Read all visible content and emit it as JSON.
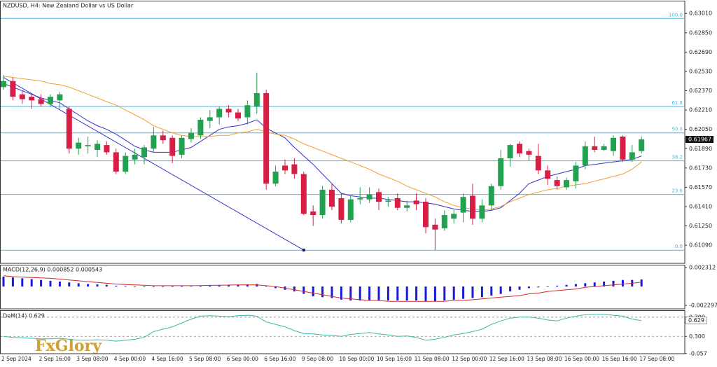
{
  "logo": "FxGlory",
  "chart_data": [
    {
      "type": "candlestick",
      "title": "NZDUSD, H4:  New Zealand Dollar vs US Dollar",
      "categories": [
        "2 Sep 2024",
        null,
        null,
        null,
        "2 Sep 16:00",
        null,
        null,
        null,
        "3 Sep 08:00",
        null,
        null,
        null,
        "4 Sep 00:00",
        null,
        null,
        null,
        "4 Sep 16:00",
        null,
        null,
        null,
        "5 Sep 08:00",
        null,
        null,
        null,
        "6 Sep 00:00",
        null,
        null,
        null,
        "6 Sep 16:00",
        null,
        null,
        null,
        "9 Sep 08:00",
        null,
        null,
        null,
        "10 Sep 00:00",
        null,
        null,
        null,
        "10 Sep 16:00",
        null,
        null,
        null,
        "11 Sep 08:00",
        null,
        null,
        null,
        "12 Sep 00:00",
        null,
        null,
        null,
        "12 Sep 16:00",
        null,
        null,
        null,
        "13 Sep 08:00",
        null,
        null,
        null,
        "16 Sep 00:00",
        null,
        null,
        null,
        "16 Sep 16:00",
        null,
        null,
        null,
        "17 Sep 08:00"
      ],
      "open": [
        0.624,
        0.6245,
        0.6234,
        0.6232,
        0.623,
        0.6226,
        0.6229,
        0.6222,
        0.6189,
        0.6191,
        0.6188,
        0.6192,
        0.6186,
        0.617,
        0.618,
        0.6182,
        0.6189,
        0.62,
        0.6198,
        0.6184,
        0.6197,
        0.62,
        0.6212,
        0.6215,
        0.6222,
        0.6219,
        0.6215,
        0.6224,
        0.6235,
        0.616,
        0.6175,
        0.6176,
        0.6168,
        0.6137,
        0.6134,
        0.6155,
        0.6148,
        0.613,
        0.6147,
        0.6147,
        0.6153,
        0.6145,
        0.6148,
        0.614,
        0.6146,
        0.6145,
        0.6126,
        0.6123,
        0.6131,
        0.6136,
        0.615,
        0.6131,
        0.6142,
        0.6158,
        0.6181,
        0.6193,
        0.6187,
        0.6183,
        0.6171,
        0.6163,
        0.6157,
        0.6162,
        0.6175,
        0.6191,
        0.6188,
        0.6187,
        0.6199,
        0.618,
        0.6187
      ],
      "high": [
        0.625,
        0.6248,
        0.6237,
        0.6235,
        0.6234,
        0.6234,
        0.6236,
        0.6224,
        0.6198,
        0.6199,
        0.6196,
        0.6195,
        0.6189,
        0.6186,
        0.6189,
        0.6192,
        0.6207,
        0.6204,
        0.62,
        0.62,
        0.6206,
        0.6215,
        0.6221,
        0.6224,
        0.6225,
        0.6222,
        0.6229,
        0.6252,
        0.6238,
        0.6175,
        0.618,
        0.6181,
        0.617,
        0.6142,
        0.6158,
        0.616,
        0.6152,
        0.615,
        0.6157,
        0.6157,
        0.6156,
        0.6149,
        0.6152,
        0.6146,
        0.6152,
        0.6148,
        0.6131,
        0.6138,
        0.6138,
        0.6152,
        0.616,
        0.6147,
        0.616,
        0.6188,
        0.6193,
        0.6195,
        0.6189,
        0.6193,
        0.6175,
        0.6166,
        0.6165,
        0.6178,
        0.6195,
        0.6199,
        0.6193,
        0.62,
        0.62,
        0.6192,
        0.6199
      ],
      "low": [
        0.6238,
        0.6229,
        0.6226,
        0.6222,
        0.6224,
        0.6224,
        0.6222,
        0.6185,
        0.6184,
        0.6185,
        0.6182,
        0.6184,
        0.6168,
        0.6168,
        0.6176,
        0.6176,
        0.6186,
        0.6193,
        0.6177,
        0.6181,
        0.6194,
        0.6197,
        0.6206,
        0.6209,
        0.6215,
        0.6212,
        0.6209,
        0.6218,
        0.6155,
        0.6158,
        0.6168,
        0.6164,
        0.6134,
        0.6125,
        0.6131,
        0.6138,
        0.6127,
        0.6128,
        0.6143,
        0.6144,
        0.6138,
        0.6141,
        0.6138,
        0.6137,
        0.6138,
        0.6119,
        0.6105,
        0.6121,
        0.6127,
        0.6128,
        0.6126,
        0.6128,
        0.6138,
        0.6155,
        0.6174,
        0.6182,
        0.6179,
        0.6168,
        0.6159,
        0.6155,
        0.6155,
        0.6156,
        0.6172,
        0.6186,
        0.6187,
        0.6183,
        0.6178,
        0.6178,
        0.6185
      ],
      "close": [
        0.6245,
        0.6232,
        0.623,
        0.6229,
        0.6226,
        0.6232,
        0.6234,
        0.6189,
        0.6194,
        0.6192,
        0.6193,
        0.6186,
        0.617,
        0.6183,
        0.6184,
        0.619,
        0.62,
        0.6196,
        0.6183,
        0.6198,
        0.6202,
        0.6213,
        0.6215,
        0.6222,
        0.6219,
        0.6214,
        0.6225,
        0.6235,
        0.616,
        0.617,
        0.6171,
        0.6168,
        0.6135,
        0.6134,
        0.6155,
        0.6141,
        0.613,
        0.6147,
        0.6148,
        0.6151,
        0.6145,
        0.6146,
        0.614,
        0.6142,
        0.6143,
        0.6124,
        0.6122,
        0.6134,
        0.6135,
        0.6149,
        0.6131,
        0.6142,
        0.6158,
        0.6181,
        0.6192,
        0.6185,
        0.6184,
        0.6171,
        0.6164,
        0.6158,
        0.6163,
        0.6175,
        0.6191,
        0.6188,
        0.6191,
        0.6198,
        0.618,
        0.6186,
        0.61967
      ],
      "up_color": "#22a150",
      "down_color": "#d81e44",
      "lines": [
        {
          "color": "#3333cc",
          "values": [
            0.6243,
            0.624,
            0.6237,
            0.6234,
            0.6231,
            0.6229,
            0.6227,
            0.6222,
            0.6217,
            0.6212,
            0.6208,
            0.6205,
            0.6201,
            0.6196,
            0.6191,
            0.6188,
            0.6186,
            0.6186,
            0.6186,
            0.6188,
            0.619,
            0.6195,
            0.62,
            0.6205,
            0.6207,
            0.6208,
            0.621,
            0.6213,
            0.6206,
            0.6202,
            0.6198,
            0.619,
            0.6183,
            0.6176,
            0.6168,
            0.616,
            0.6152,
            0.615,
            0.6149,
            0.6148,
            0.6148,
            0.6147,
            0.6146,
            0.6145,
            0.6145,
            0.6144,
            0.6143,
            0.6141,
            0.6139,
            0.6138,
            0.6137,
            0.6137,
            0.6138,
            0.614,
            0.6146,
            0.6152,
            0.616,
            0.6163,
            0.6166,
            0.6168,
            0.617,
            0.6172,
            0.6175,
            0.6176,
            0.6177,
            0.6178,
            0.6179,
            0.618,
            0.6183
          ]
        },
        {
          "color": "#f0a030",
          "values": [
            0.6249,
            0.6248,
            0.6247,
            0.6246,
            0.6245,
            0.6243,
            0.6242,
            0.624,
            0.6237,
            0.6234,
            0.6231,
            0.6228,
            0.6225,
            0.6221,
            0.6217,
            0.6213,
            0.6208,
            0.6205,
            0.6202,
            0.62,
            0.6199,
            0.6199,
            0.6199,
            0.62,
            0.62,
            0.6202,
            0.6203,
            0.6205,
            0.6203,
            0.6201,
            0.62,
            0.6197,
            0.6193,
            0.619,
            0.6187,
            0.6184,
            0.6181,
            0.6178,
            0.6175,
            0.6172,
            0.6168,
            0.6165,
            0.6162,
            0.6158,
            0.6155,
            0.6152,
            0.6149,
            0.6145,
            0.6142,
            0.614,
            0.6139,
            0.6138,
            0.6139,
            0.6141,
            0.6145,
            0.6148,
            0.6151,
            0.6153,
            0.6155,
            0.6156,
            0.6158,
            0.6159,
            0.616,
            0.6162,
            0.6164,
            0.6166,
            0.6168,
            0.6172,
            0.6178
          ]
        }
      ],
      "trendline": {
        "color": "#3333cc",
        "x": [
          0,
          32
        ],
        "values": [
          0.6248,
          0.6105
        ]
      },
      "fib_color": "#4db8e0",
      "fib_levels": [
        {
          "value": 0.62969,
          "label": "100.0"
        },
        {
          "value": 0.62239,
          "label": "61.8"
        },
        {
          "value": 0.62021,
          "label": "50.0"
        },
        {
          "value": 0.61789,
          "label": "38.2"
        },
        {
          "value": 0.61511,
          "label": "23.6"
        },
        {
          "value": 0.61049,
          "label": "0.0"
        }
      ],
      "last_price": 0.61967,
      "ylim": [
        0.6094,
        0.6311
      ],
      "yticks": [
        {
          "value": 0.6301,
          "label": "0.63010"
        },
        {
          "value": 0.6285,
          "label": "0.62850"
        },
        {
          "value": 0.6269,
          "label": "0.62690"
        },
        {
          "value": 0.6253,
          "label": "0.62530"
        },
        {
          "value": 0.6237,
          "label": "0.62370"
        },
        {
          "value": 0.6221,
          "label": "0.62210"
        },
        {
          "value": 0.6205,
          "label": "0.62050"
        },
        {
          "value": 0.6189,
          "label": "0.61890"
        },
        {
          "value": 0.6173,
          "label": "0.61730"
        },
        {
          "value": 0.6157,
          "label": "0.61570"
        },
        {
          "value": 0.6141,
          "label": "0.61410"
        },
        {
          "value": 0.6125,
          "label": "0.61250"
        },
        {
          "value": 0.6109,
          "label": "0.61090"
        }
      ]
    },
    {
      "type": "macd",
      "title": "MACD(12,26,9) 0.000852 0.000543",
      "histogram": {
        "color": "#1a1ad8",
        "values": [
          0.0012,
          0.0011,
          0.001,
          0.0009,
          0.0008,
          0.0007,
          0.0006,
          0.0005,
          0.0004,
          0.0003,
          0.00025,
          0.0002,
          0.0001,
          5e-05,
          2e-05,
          1e-05,
          1e-05,
          2e-05,
          3e-05,
          5e-05,
          7e-05,
          0.0001,
          0.00012,
          0.00015,
          0.0002,
          0.00022,
          0.00025,
          0.0003,
          0.0001,
          -0.0002,
          -0.0004,
          -0.0006,
          -0.0009,
          -0.0012,
          -0.0013,
          -0.0014,
          -0.0016,
          -0.0017,
          -0.0017,
          -0.0017,
          -0.0017,
          -0.0017,
          -0.0017,
          -0.0017,
          -0.0017,
          -0.0018,
          -0.0018,
          -0.0017,
          -0.0016,
          -0.0015,
          -0.0014,
          -0.0013,
          -0.0011,
          -0.0009,
          -0.0006,
          -0.0004,
          -0.0002,
          -0.0001,
          2e-05,
          0.0001,
          0.0002,
          0.0003,
          0.0004,
          0.0005,
          0.0006,
          0.0007,
          0.0008,
          0.0008,
          0.000852
        ]
      },
      "signal": {
        "color": "#d22a2a",
        "values": [
          0.0013,
          0.0012,
          0.00115,
          0.0011,
          0.00105,
          0.001,
          0.0009,
          0.0008,
          0.0007,
          0.0006,
          0.0005,
          0.0004,
          0.0003,
          0.00025,
          0.0002,
          0.00015,
          0.0001,
          0.0001,
          0.0001,
          0.0001,
          0.0001,
          0.00012,
          0.00014,
          0.00016,
          0.00018,
          0.0002,
          0.0002,
          0.0002,
          0.0001,
          0,
          -0.0002,
          -0.0004,
          -0.0006,
          -0.0008,
          -0.001,
          -0.0012,
          -0.0014,
          -0.0015,
          -0.0016,
          -0.0017,
          -0.0017,
          -0.0018,
          -0.0018,
          -0.0018,
          -0.0018,
          -0.0018,
          -0.0018,
          -0.0018,
          -0.0017,
          -0.0017,
          -0.0016,
          -0.0015,
          -0.0014,
          -0.0013,
          -0.0012,
          -0.0011,
          -0.0009,
          -0.0008,
          -0.0006,
          -0.0005,
          -0.0004,
          -0.0003,
          -0.0001,
          0,
          0.0001,
          0.0002,
          0.0003,
          0.0004,
          0.000543
        ]
      },
      "ylim": [
        -0.00272,
        0.00265
      ],
      "yticks": [
        0.002312,
        -0.002297
      ]
    },
    {
      "type": "line",
      "title": "DeM(14) 0.629",
      "color": "#3cb8a8",
      "values": [
        0.3,
        0.28,
        0.27,
        0.26,
        0.25,
        0.25,
        0.26,
        0.24,
        0.22,
        0.22,
        0.23,
        0.22,
        0.2,
        0.22,
        0.24,
        0.28,
        0.4,
        0.45,
        0.5,
        0.58,
        0.66,
        0.72,
        0.73,
        0.72,
        0.71,
        0.73,
        0.74,
        0.72,
        0.6,
        0.55,
        0.5,
        0.42,
        0.36,
        0.35,
        0.33,
        0.32,
        0.3,
        0.34,
        0.36,
        0.38,
        0.35,
        0.33,
        0.3,
        0.31,
        0.28,
        0.22,
        0.24,
        0.28,
        0.33,
        0.36,
        0.4,
        0.45,
        0.55,
        0.62,
        0.68,
        0.7,
        0.7,
        0.68,
        0.64,
        0.62,
        0.68,
        0.72,
        0.75,
        0.76,
        0.76,
        0.74,
        0.72,
        0.66,
        0.629
      ],
      "last_value": 0.629,
      "levels": [
        0.7,
        0.3
      ],
      "ylim": [
        -0.06,
        0.843
      ],
      "yticks": [
        {
          "value": 0.7,
          "label": "0.700"
        },
        {
          "value": 0.3,
          "label": "0.300"
        },
        -0.057
      ]
    }
  ]
}
